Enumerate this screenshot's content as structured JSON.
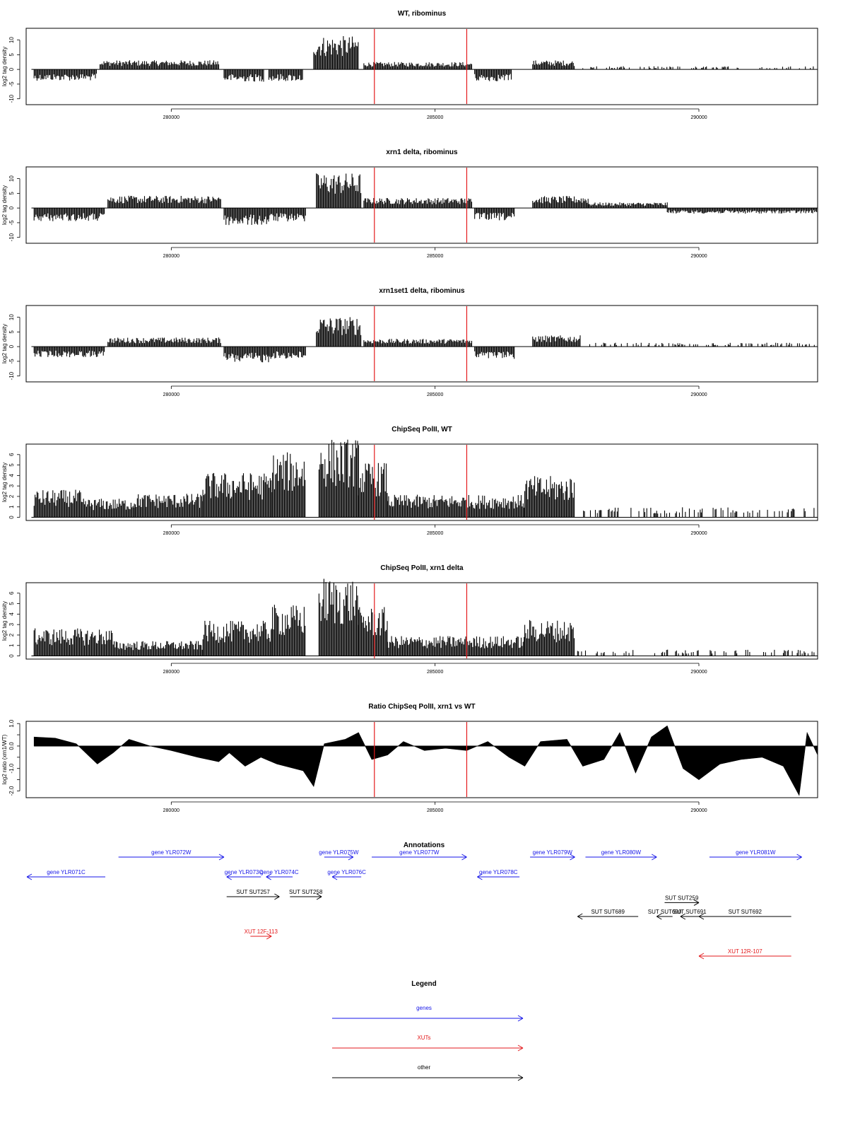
{
  "colors": {
    "ink": "#000000",
    "marker": "#e31a1c",
    "gene": "#1515e8",
    "xut": "#e31a1c",
    "other": "#000000"
  },
  "x_axis": {
    "ticks": [
      280000,
      285000,
      290000
    ],
    "range": [
      277250,
      292250
    ]
  },
  "markers": [
    283850,
    285600
  ],
  "chart_data": [
    {
      "type": "area",
      "title": "WT, ribominus",
      "ylabel": "log2 tag density",
      "ylim": [
        -12,
        14
      ],
      "yticks": [
        -10,
        -5,
        0,
        5,
        10
      ],
      "segments": [
        {
          "x": [
            277400,
            278600
          ],
          "level": -3.2
        },
        {
          "x": [
            278650,
            280900
          ],
          "level": 2.6
        },
        {
          "x": [
            281000,
            281750
          ],
          "level": -3.5
        },
        {
          "x": [
            281850,
            282500
          ],
          "level": -3.4
        },
        {
          "x": [
            282700,
            283550
          ],
          "level": 9.5
        },
        {
          "x": [
            283650,
            285700
          ],
          "level": 2.1
        },
        {
          "x": [
            285750,
            286450
          ],
          "level": -3.4
        },
        {
          "x": [
            286850,
            287650
          ],
          "level": 2.6
        },
        {
          "x": [
            287800,
            292250
          ],
          "level": 0.9,
          "sparse": true
        }
      ]
    },
    {
      "type": "area",
      "title": "xrn1 delta, ribominus",
      "ylabel": "log2 tag density",
      "ylim": [
        -12,
        14
      ],
      "yticks": [
        -10,
        -5,
        0,
        5,
        10
      ],
      "segments": [
        {
          "x": [
            277400,
            278750
          ],
          "level": -3.8
        },
        {
          "x": [
            278800,
            280950
          ],
          "level": 3.5
        },
        {
          "x": [
            281000,
            281850
          ],
          "level": -5
        },
        {
          "x": [
            281850,
            282550
          ],
          "level": -3.9
        },
        {
          "x": [
            282750,
            283600
          ],
          "level": 10
        },
        {
          "x": [
            283650,
            285700
          ],
          "level": 2.9
        },
        {
          "x": [
            285750,
            286500
          ],
          "level": -3.6
        },
        {
          "x": [
            286850,
            287900
          ],
          "level": 3.4
        },
        {
          "x": [
            287900,
            289400
          ],
          "level": 1.6
        },
        {
          "x": [
            289400,
            292250
          ],
          "level": -1.6
        }
      ]
    },
    {
      "type": "area",
      "title": "xrn1set1 delta, ribominus",
      "ylabel": "log2 tag density",
      "ylim": [
        -12,
        14
      ],
      "yticks": [
        -10,
        -5,
        0,
        5,
        10
      ],
      "segments": [
        {
          "x": [
            277400,
            278750
          ],
          "level": -3
        },
        {
          "x": [
            278800,
            280950
          ],
          "level": 2.6
        },
        {
          "x": [
            281000,
            281850
          ],
          "level": -4.6
        },
        {
          "x": [
            281850,
            282550
          ],
          "level": -3.5
        },
        {
          "x": [
            282750,
            283600
          ],
          "level": 8.5
        },
        {
          "x": [
            283650,
            285700
          ],
          "level": 2.2
        },
        {
          "x": [
            285750,
            286500
          ],
          "level": -3.5
        },
        {
          "x": [
            286850,
            287750
          ],
          "level": 3.2
        },
        {
          "x": [
            287800,
            292250
          ],
          "level": 1.1,
          "sparse": true
        }
      ]
    },
    {
      "type": "area",
      "title": "ChipSeq PolII, WT",
      "ylabel": "log2 tag density",
      "ylim": [
        -0.3,
        7
      ],
      "yticks": [
        0,
        1,
        2,
        3,
        4,
        5,
        6
      ],
      "segments": [
        {
          "x": [
            277400,
            278300
          ],
          "level": 2.2
        },
        {
          "x": [
            278300,
            279300
          ],
          "level": 1.5
        },
        {
          "x": [
            279300,
            280600
          ],
          "level": 1.9
        },
        {
          "x": [
            280600,
            281900
          ],
          "level": 3.6
        },
        {
          "x": [
            281900,
            282550
          ],
          "level": 5.2
        },
        {
          "x": [
            282800,
            283550
          ],
          "level": 6.3
        },
        {
          "x": [
            283550,
            284100
          ],
          "level": 4.4
        },
        {
          "x": [
            284100,
            286700
          ],
          "level": 1.8
        },
        {
          "x": [
            286700,
            287650
          ],
          "level": 3.3
        },
        {
          "x": [
            287700,
            292250
          ],
          "level": 0.8,
          "sparse": true
        }
      ]
    },
    {
      "type": "area",
      "title": "ChipSeq PolII, xrn1 delta",
      "ylabel": "log2 tag density",
      "ylim": [
        -0.3,
        7
      ],
      "yticks": [
        0,
        1,
        2,
        3,
        4,
        5,
        6
      ],
      "segments": [
        {
          "x": [
            277400,
            278900
          ],
          "level": 2.2
        },
        {
          "x": [
            278900,
            280600
          ],
          "level": 1.2
        },
        {
          "x": [
            280600,
            281900
          ],
          "level": 2.8
        },
        {
          "x": [
            281900,
            282550
          ],
          "level": 4.1
        },
        {
          "x": [
            282800,
            283550
          ],
          "level": 6.3
        },
        {
          "x": [
            283550,
            284100
          ],
          "level": 3.9
        },
        {
          "x": [
            284100,
            286700
          ],
          "level": 1.6
        },
        {
          "x": [
            286700,
            287650
          ],
          "level": 2.9
        },
        {
          "x": [
            287700,
            292250
          ],
          "level": 0.5,
          "sparse": true
        }
      ]
    },
    {
      "type": "area",
      "title": "Ratio ChipSeq PolII, xrn1 vs WT",
      "ylabel": "log2 ratio (xrn1/WT)",
      "ylim": [
        -2.3,
        1.1
      ],
      "yticks": [
        -2,
        -1.5,
        -1,
        -0.5,
        0,
        0.5,
        1
      ],
      "ytick_labels": [
        "-2.0",
        "",
        "-1.0",
        "",
        "0.0",
        "",
        "1.0"
      ],
      "profile": [
        [
          277400,
          0.4
        ],
        [
          277800,
          0.35
        ],
        [
          278200,
          0.1
        ],
        [
          278600,
          -0.8
        ],
        [
          278900,
          -0.3
        ],
        [
          279200,
          0.3
        ],
        [
          279600,
          0
        ],
        [
          280000,
          -0.2
        ],
        [
          280500,
          -0.5
        ],
        [
          280900,
          -0.7
        ],
        [
          281100,
          -0.3
        ],
        [
          281400,
          -0.9
        ],
        [
          281700,
          -0.5
        ],
        [
          282000,
          -0.8
        ],
        [
          282500,
          -1.1
        ],
        [
          282700,
          -1.8
        ],
        [
          282900,
          0.1
        ],
        [
          283300,
          0.3
        ],
        [
          283550,
          0.6
        ],
        [
          283800,
          -0.6
        ],
        [
          284100,
          -0.4
        ],
        [
          284400,
          0.2
        ],
        [
          284800,
          -0.2
        ],
        [
          285200,
          -0.1
        ],
        [
          285600,
          -0.2
        ],
        [
          286000,
          0.2
        ],
        [
          286400,
          -0.5
        ],
        [
          286700,
          -0.9
        ],
        [
          287000,
          0.2
        ],
        [
          287500,
          0.3
        ],
        [
          287800,
          -0.9
        ],
        [
          288200,
          -0.6
        ],
        [
          288500,
          0.6
        ],
        [
          288800,
          -1.2
        ],
        [
          289100,
          0.4
        ],
        [
          289400,
          0.9
        ],
        [
          289700,
          -1.0
        ],
        [
          290000,
          -1.5
        ],
        [
          290400,
          -0.8
        ],
        [
          290800,
          -0.6
        ],
        [
          291200,
          -0.5
        ],
        [
          291600,
          -0.9
        ],
        [
          291900,
          -2.2
        ],
        [
          292050,
          0.6
        ],
        [
          292250,
          -0.4
        ]
      ]
    }
  ],
  "annotations": {
    "title": "Annotations",
    "features": [
      {
        "label": "gene YLR071C",
        "kind": "gene",
        "strand": "-",
        "start": 277250,
        "end": 278750,
        "row": 0
      },
      {
        "label": "gene YLR072W",
        "kind": "gene",
        "strand": "+",
        "start": 279000,
        "end": 281000,
        "row": -1
      },
      {
        "label": "gene YLR073C",
        "kind": "gene",
        "strand": "-",
        "start": 281050,
        "end": 281700,
        "row": 0
      },
      {
        "label": "gene YLR074C",
        "kind": "gene",
        "strand": "-",
        "start": 281800,
        "end": 282300,
        "row": 0
      },
      {
        "label": "gene YLR075W",
        "kind": "gene",
        "strand": "+",
        "start": 282900,
        "end": 283450,
        "row": -1
      },
      {
        "label": "gene YLR076C",
        "kind": "gene",
        "strand": "-",
        "start": 283050,
        "end": 283600,
        "row": 0
      },
      {
        "label": "gene YLR077W",
        "kind": "gene",
        "strand": "+",
        "start": 283800,
        "end": 285600,
        "row": -1
      },
      {
        "label": "gene YLR078C",
        "kind": "gene",
        "strand": "-",
        "start": 285800,
        "end": 286600,
        "row": 0
      },
      {
        "label": "gene YLR079W",
        "kind": "gene",
        "strand": "+",
        "start": 286800,
        "end": 287650,
        "row": -1
      },
      {
        "label": "gene YLR080W",
        "kind": "gene",
        "strand": "+",
        "start": 287850,
        "end": 289200,
        "row": -1
      },
      {
        "label": "gene YLR081W",
        "kind": "gene",
        "strand": "+",
        "start": 290200,
        "end": 291950,
        "row": -1
      },
      {
        "label": "SUT SUT257",
        "kind": "other",
        "strand": "+",
        "start": 281050,
        "end": 282050,
        "row": 1
      },
      {
        "label": "SUT SUT258",
        "kind": "other",
        "strand": "+",
        "start": 282250,
        "end": 282850,
        "row": 1
      },
      {
        "label": "SUT SUT689",
        "kind": "other",
        "strand": "-",
        "start": 287700,
        "end": 288850,
        "row": 2
      },
      {
        "label": "SUT SUT690",
        "kind": "other",
        "strand": "-",
        "start": 289200,
        "end": 289500,
        "row": 2
      },
      {
        "label": "SUT SUT259",
        "kind": "other",
        "strand": "+",
        "start": 289350,
        "end": 290000,
        "row": 1.3
      },
      {
        "label": "SUT SUT691",
        "kind": "other",
        "strand": "-",
        "start": 289650,
        "end": 290000,
        "row": 2
      },
      {
        "label": "SUT SUT692",
        "kind": "other",
        "strand": "-",
        "start": 290000,
        "end": 291750,
        "row": 2
      },
      {
        "label": "XUT 12F-113",
        "kind": "xut",
        "strand": "+",
        "start": 281500,
        "end": 281900,
        "row": 3
      },
      {
        "label": "XUT 12R-107",
        "kind": "xut",
        "strand": "-",
        "start": 290000,
        "end": 291750,
        "row": 4
      }
    ]
  },
  "legend": {
    "title": "Legend",
    "items": [
      {
        "label": "genes",
        "kind": "gene"
      },
      {
        "label": "XUTs",
        "kind": "xut"
      },
      {
        "label": "other",
        "kind": "other"
      }
    ]
  }
}
